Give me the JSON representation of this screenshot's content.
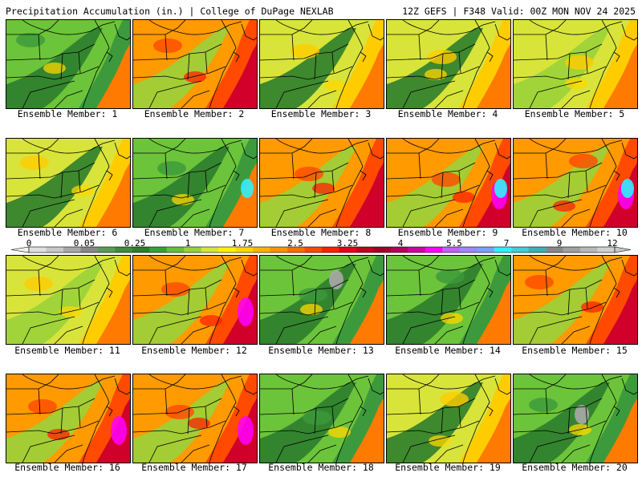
{
  "header": {
    "left": "Precipitation Accumulation (in.) | College of DuPage NEXLAB",
    "right": "12Z GEFS | F348 Valid: 00Z MON NOV 24 2025"
  },
  "panels": [
    {
      "label": "Ensemble Member: 1",
      "hot": 0.3
    },
    {
      "label": "Ensemble Member: 2",
      "hot": 0.75
    },
    {
      "label": "Ensemble Member: 3",
      "hot": 0.45
    },
    {
      "label": "Ensemble Member: 4",
      "hot": 0.4
    },
    {
      "label": "Ensemble Member: 5",
      "hot": 0.6
    },
    {
      "label": "Ensemble Member: 6",
      "hot": 0.35
    },
    {
      "label": "Ensemble Member: 7",
      "hot": 0.25
    },
    {
      "label": "Ensemble Member: 8",
      "hot": 0.7
    },
    {
      "label": "Ensemble Member: 9",
      "hot": 0.95
    },
    {
      "label": "Ensemble Member: 10",
      "hot": 0.9
    },
    {
      "label": "Ensemble Member: 11",
      "hot": 0.55
    },
    {
      "label": "Ensemble Member: 12",
      "hot": 0.85
    },
    {
      "label": "Ensemble Member: 13",
      "hot": 0.1
    },
    {
      "label": "Ensemble Member: 14",
      "hot": 0.2
    },
    {
      "label": "Ensemble Member: 15",
      "hot": 0.75
    },
    {
      "label": "Ensemble Member: 16",
      "hot": 0.9
    },
    {
      "label": "Ensemble Member: 17",
      "hot": 0.85
    },
    {
      "label": "Ensemble Member: 18",
      "hot": 0.25
    },
    {
      "label": "Ensemble Member: 19",
      "hot": 0.35
    },
    {
      "label": "Ensemble Member: 20",
      "hot": 0.05
    }
  ],
  "colorbar": {
    "ticks": [
      "0",
      "0.05",
      "0.25",
      "1",
      "1.75",
      "2.5",
      "3.25",
      "4",
      "5.5",
      "7",
      "9",
      "12"
    ],
    "colors": [
      "#e0e0e0",
      "#c8c8c8",
      "#a8a8a8",
      "#888888",
      "#5a9a5a",
      "#3c8c3c",
      "#2e7d2e",
      "#37a137",
      "#66c03a",
      "#9ad23a",
      "#d6e63a",
      "#fff200",
      "#ffd700",
      "#ffb300",
      "#ff9200",
      "#ff6e00",
      "#ff4800",
      "#ff2000",
      "#e8001c",
      "#c0001e",
      "#a00028",
      "#b4005a",
      "#d0009a",
      "#ff00ff",
      "#c060ff",
      "#9a88ff",
      "#7aa0ff",
      "#30f0ff",
      "#40d0d0",
      "#40b0b0",
      "#888888",
      "#a0a0a0",
      "#b8b8b8",
      "#d0d0d0"
    ]
  }
}
